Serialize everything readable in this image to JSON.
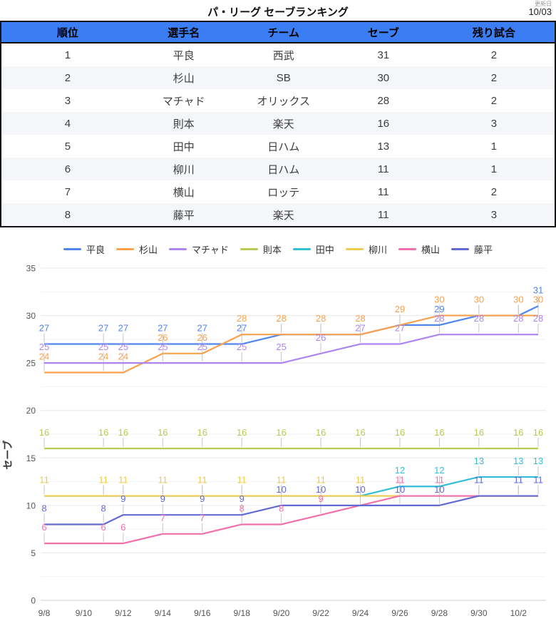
{
  "header": {
    "title": "パ・リーグ セーブランキング",
    "updated_label": "更新日",
    "updated_value": "10/03"
  },
  "table": {
    "columns": [
      "順位",
      "選手名",
      "チーム",
      "セーブ",
      "残り試合"
    ],
    "rows": [
      [
        "1",
        "平良",
        "西武",
        "31",
        "2"
      ],
      [
        "2",
        "杉山",
        "SB",
        "30",
        "2"
      ],
      [
        "3",
        "マチャド",
        "オリックス",
        "28",
        "2"
      ],
      [
        "4",
        "則本",
        "楽天",
        "16",
        "3"
      ],
      [
        "5",
        "田中",
        "日ハム",
        "13",
        "1"
      ],
      [
        "6",
        "柳川",
        "日ハム",
        "11",
        "1"
      ],
      [
        "7",
        "横山",
        "ロッテ",
        "11",
        "2"
      ],
      [
        "8",
        "藤平",
        "楽天",
        "11",
        "3"
      ]
    ]
  },
  "chart_data": {
    "type": "line",
    "ylabel": "セーブ",
    "ylim": [
      0,
      35
    ],
    "y_ticks": [
      0,
      5,
      10,
      15,
      20,
      25,
      30,
      35
    ],
    "grid": "on",
    "legend_position": "top",
    "x_axis_tick_labels": [
      "9/8",
      "9/10",
      "9/12",
      "9/14",
      "9/16",
      "9/18",
      "9/20",
      "9/22",
      "9/24",
      "9/26",
      "9/28",
      "9/30",
      "10/2"
    ],
    "x_axis_tick_offsets": [
      0,
      2,
      4,
      6,
      8,
      10,
      12,
      14,
      16,
      18,
      20,
      22,
      24
    ],
    "x_point_dates": [
      "9/8",
      "9/11",
      "9/12",
      "9/14",
      "9/16",
      "9/18",
      "9/20",
      "9/22",
      "9/24",
      "9/26",
      "9/28",
      "9/30",
      "10/2",
      "10/3"
    ],
    "x_point_day_offsets": [
      0,
      3,
      4,
      6,
      8,
      10,
      12,
      14,
      16,
      18,
      20,
      22,
      24,
      25
    ],
    "series": [
      {
        "name": "平良",
        "color": "#4f87ee",
        "values": [
          27,
          27,
          27,
          27,
          27,
          27,
          28,
          28,
          28,
          29,
          29,
          30,
          30,
          31
        ]
      },
      {
        "name": "杉山",
        "color": "#f9a14d",
        "values": [
          24,
          24,
          24,
          26,
          26,
          28,
          28,
          28,
          28,
          29,
          30,
          30,
          30,
          30
        ]
      },
      {
        "name": "マチャド",
        "color": "#ad85ef",
        "values": [
          25,
          25,
          25,
          25,
          25,
          25,
          25,
          26,
          27,
          27,
          28,
          28,
          28,
          28
        ]
      },
      {
        "name": "則本",
        "color": "#b8cc52",
        "values": [
          16,
          16,
          16,
          16,
          16,
          16,
          16,
          16,
          16,
          16,
          16,
          16,
          16,
          16
        ]
      },
      {
        "name": "田中",
        "color": "#32bfd6",
        "values": [
          11,
          11,
          11,
          11,
          11,
          11,
          11,
          11,
          11,
          12,
          12,
          13,
          13,
          13
        ]
      },
      {
        "name": "柳川",
        "color": "#eccb4e",
        "values": [
          11,
          11,
          11,
          11,
          11,
          11,
          11,
          11,
          11,
          11,
          11,
          11,
          11,
          11
        ]
      },
      {
        "name": "横山",
        "color": "#f170ac",
        "values": [
          6,
          6,
          6,
          7,
          7,
          8,
          8,
          9,
          10,
          11,
          11,
          11,
          11,
          11
        ]
      },
      {
        "name": "藤平",
        "color": "#6269d2",
        "values": [
          8,
          8,
          9,
          9,
          9,
          9,
          10,
          10,
          10,
          10,
          10,
          11,
          11,
          11
        ]
      }
    ]
  },
  "style": {
    "header_bg": "#3b7df2",
    "zebra_bg": "#f4f6fa",
    "grid_major": "#e7e7e7",
    "grid_minor": "#f2f2f2",
    "axis_line": "#cfcfcf",
    "tick_leader": "#c6c6c6",
    "axis_text": "#555555"
  }
}
